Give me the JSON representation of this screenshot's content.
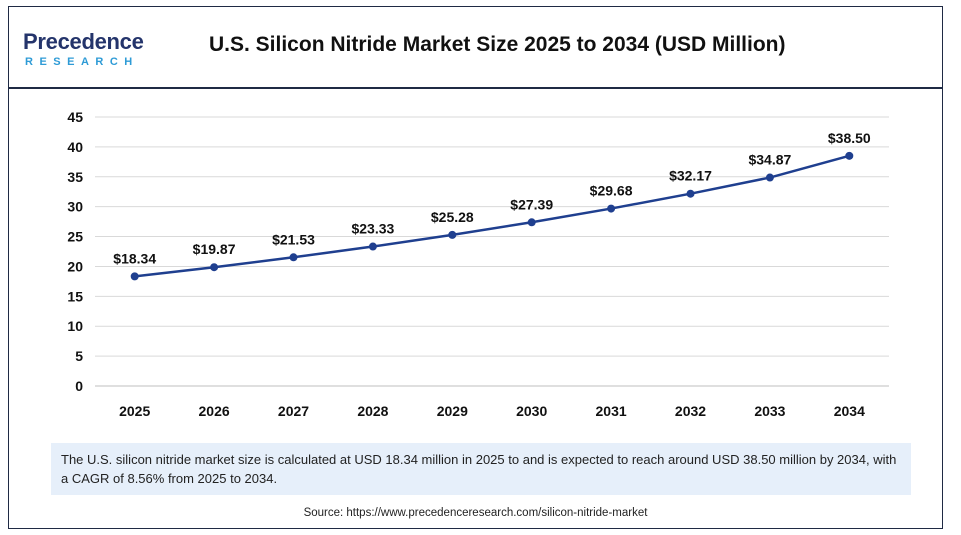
{
  "brand": {
    "name": "Precedence",
    "sub": "RESEARCH"
  },
  "header": {
    "title": "U.S. Silicon Nitride Market Size 2025 to 2034 (USD Million)"
  },
  "note": "The U.S. silicon nitride market size is calculated at USD 18.34 million in 2025 to and is expected to reach around USD 38.50 million by 2034, with a CAGR of 8.56% from 2025 to 2034.",
  "source": "Source: https://www.precedenceresearch.com/silicon-nitride-market",
  "colors": {
    "line": "#1f3f8f",
    "grid": "#d9d9d9",
    "brand": "#24346b",
    "brand_accent": "#2e9bd6"
  },
  "chart_data": {
    "type": "line",
    "categories": [
      "2025",
      "2026",
      "2027",
      "2028",
      "2029",
      "2030",
      "2031",
      "2032",
      "2033",
      "2034"
    ],
    "values": [
      18.34,
      19.87,
      21.53,
      23.33,
      25.28,
      27.39,
      29.68,
      32.17,
      34.87,
      38.5
    ],
    "labels": [
      "$18.34",
      "$19.87",
      "$21.53",
      "$23.33",
      "$25.28",
      "$27.39",
      "$29.68",
      "$32.17",
      "$34.87",
      "$38.50"
    ],
    "ylim": [
      0,
      45
    ],
    "yticks": [
      0,
      5,
      10,
      15,
      20,
      25,
      30,
      35,
      40,
      45
    ],
    "grid": true
  }
}
